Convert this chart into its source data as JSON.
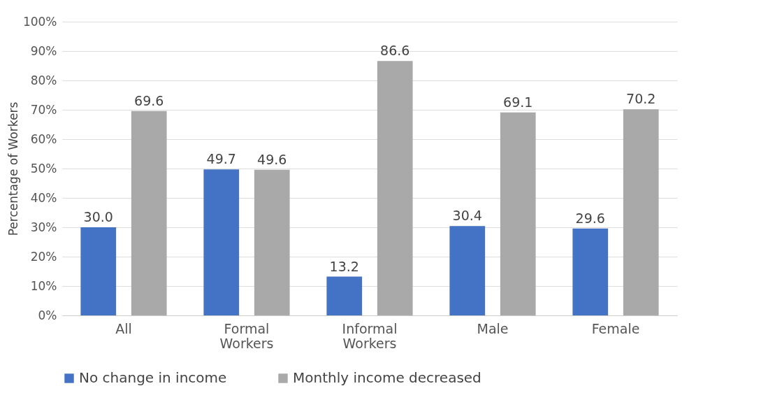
{
  "chart_data": {
    "type": "bar",
    "ylabel": "Percentage of Workers",
    "categories": [
      "All",
      "Formal Workers",
      "Informal Workers",
      "Male",
      "Female"
    ],
    "series": [
      {
        "name": "No change in income",
        "color": "#4472c4",
        "values": [
          30.0,
          49.7,
          13.2,
          30.4,
          29.6
        ],
        "value_labels": [
          "30.0",
          "49.7",
          "13.2",
          "30.4",
          "29.6"
        ]
      },
      {
        "name": "Monthly income decreased",
        "color": "#a9a9a9",
        "values": [
          69.6,
          49.6,
          86.6,
          69.1,
          70.2
        ],
        "value_labels": [
          "69.6",
          "49.6",
          "86.6",
          "69.1",
          "70.2"
        ]
      }
    ],
    "ylim": [
      0,
      100
    ],
    "yticks": [
      {
        "value": 0,
        "label": "0%"
      },
      {
        "value": 10,
        "label": "10%"
      },
      {
        "value": 20,
        "label": "20%"
      },
      {
        "value": 30,
        "label": "30%"
      },
      {
        "value": 40,
        "label": "40%"
      },
      {
        "value": 50,
        "label": "50%"
      },
      {
        "value": 60,
        "label": "60%"
      },
      {
        "value": 70,
        "label": "70%"
      },
      {
        "value": 80,
        "label": "80%"
      },
      {
        "value": 90,
        "label": "90%"
      },
      {
        "value": 100,
        "label": "100%"
      }
    ],
    "grid": "y",
    "legend": "bottom"
  }
}
